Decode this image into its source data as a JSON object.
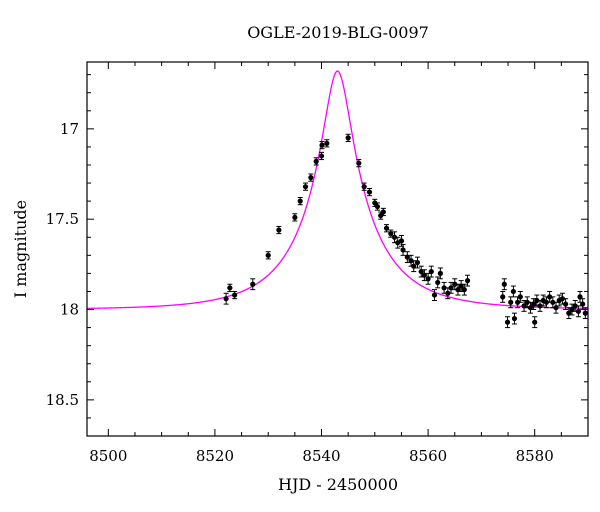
{
  "chart_data": {
    "type": "scatter",
    "title": "OGLE-2019-BLG-0097",
    "xlabel": "HJD - 2450000",
    "ylabel": "I magnitude",
    "xlim": [
      8496,
      8590
    ],
    "ylim": [
      18.7,
      16.63
    ],
    "y_inverted": true,
    "x_ticks": [
      8500,
      8520,
      8540,
      8560,
      8580
    ],
    "x_tick_labels": [
      "8500",
      "8520",
      "8540",
      "8560",
      "8580"
    ],
    "y_ticks": [
      17,
      17.5,
      18,
      18.5
    ],
    "y_tick_labels": [
      "17",
      "17.5",
      "18",
      "18.5"
    ],
    "grid": false,
    "model": {
      "color": "#ff00ff",
      "t0": 8543.0,
      "u0": 0.176,
      "tE": 14.0,
      "base_mag": 18.0,
      "fs": 0.5
    },
    "series": [
      {
        "marker_color": "#000000",
        "points": [
          [
            8522.1,
            17.94,
            0.03
          ],
          [
            8522.8,
            17.88,
            0.02
          ],
          [
            8523.7,
            17.92,
            0.02
          ],
          [
            8527.1,
            17.86,
            0.03
          ],
          [
            8530.0,
            17.7,
            0.02
          ],
          [
            8532.0,
            17.56,
            0.02
          ],
          [
            8535.0,
            17.49,
            0.02
          ],
          [
            8536.0,
            17.4,
            0.02
          ],
          [
            8537.0,
            17.32,
            0.02
          ],
          [
            8538.0,
            17.27,
            0.02
          ],
          [
            8539.0,
            17.18,
            0.02
          ],
          [
            8540.0,
            17.15,
            0.02
          ],
          [
            8540.1,
            17.09,
            0.02
          ],
          [
            8541.0,
            17.08,
            0.02
          ],
          [
            8545.0,
            17.05,
            0.02
          ],
          [
            8547.0,
            17.19,
            0.02
          ],
          [
            8548.0,
            17.32,
            0.02
          ],
          [
            8549.0,
            17.35,
            0.02
          ],
          [
            8550.0,
            17.41,
            0.02
          ],
          [
            8550.5,
            17.43,
            0.02
          ],
          [
            8551.1,
            17.48,
            0.02
          ],
          [
            8551.6,
            17.46,
            0.02
          ],
          [
            8552.2,
            17.55,
            0.02
          ],
          [
            8553.0,
            17.58,
            0.02
          ],
          [
            8553.7,
            17.6,
            0.03
          ],
          [
            8554.3,
            17.63,
            0.03
          ],
          [
            8555.0,
            17.62,
            0.03
          ],
          [
            8555.3,
            17.67,
            0.03
          ],
          [
            8556.1,
            17.71,
            0.03
          ],
          [
            8556.8,
            17.73,
            0.03
          ],
          [
            8557.3,
            17.76,
            0.03
          ],
          [
            8558.0,
            17.74,
            0.03
          ],
          [
            8558.7,
            17.79,
            0.03
          ],
          [
            8559.3,
            17.81,
            0.03
          ],
          [
            8560.0,
            17.83,
            0.03
          ],
          [
            8560.6,
            17.79,
            0.03
          ],
          [
            8561.2,
            17.92,
            0.03
          ],
          [
            8561.8,
            17.85,
            0.03
          ],
          [
            8562.3,
            17.8,
            0.03
          ],
          [
            8563.0,
            17.88,
            0.03
          ],
          [
            8563.7,
            17.91,
            0.03
          ],
          [
            8564.3,
            17.88,
            0.03
          ],
          [
            8565.0,
            17.86,
            0.03
          ],
          [
            8565.6,
            17.89,
            0.03
          ],
          [
            8566.2,
            17.87,
            0.03
          ],
          [
            8566.8,
            17.89,
            0.03
          ],
          [
            8567.4,
            17.84,
            0.03
          ],
          [
            8574.0,
            17.93,
            0.03
          ],
          [
            8574.3,
            17.86,
            0.03
          ],
          [
            8574.9,
            18.07,
            0.03
          ],
          [
            8575.5,
            17.96,
            0.03
          ],
          [
            8576.0,
            17.9,
            0.03
          ],
          [
            8576.2,
            18.05,
            0.03
          ],
          [
            8576.8,
            17.96,
            0.03
          ],
          [
            8577.3,
            17.93,
            0.03
          ],
          [
            8578.0,
            17.98,
            0.03
          ],
          [
            8578.6,
            17.96,
            0.03
          ],
          [
            8579.2,
            17.99,
            0.03
          ],
          [
            8579.8,
            17.97,
            0.03
          ],
          [
            8580.0,
            18.07,
            0.03
          ],
          [
            8580.4,
            17.95,
            0.03
          ],
          [
            8581.0,
            17.98,
            0.03
          ],
          [
            8581.6,
            17.95,
            0.03
          ],
          [
            8582.2,
            17.96,
            0.03
          ],
          [
            8582.8,
            17.93,
            0.03
          ],
          [
            8583.4,
            17.96,
            0.03
          ],
          [
            8584.0,
            17.99,
            0.03
          ],
          [
            8584.6,
            17.95,
            0.03
          ],
          [
            8585.2,
            17.94,
            0.03
          ],
          [
            8585.8,
            17.97,
            0.03
          ],
          [
            8586.4,
            18.02,
            0.03
          ],
          [
            8587.0,
            18.0,
            0.03
          ],
          [
            8587.6,
            17.98,
            0.03
          ],
          [
            8588.2,
            18.01,
            0.03
          ],
          [
            8588.5,
            17.93,
            0.03
          ],
          [
            8589.0,
            17.97,
            0.03
          ],
          [
            8589.5,
            18.02,
            0.03
          ]
        ]
      }
    ]
  }
}
